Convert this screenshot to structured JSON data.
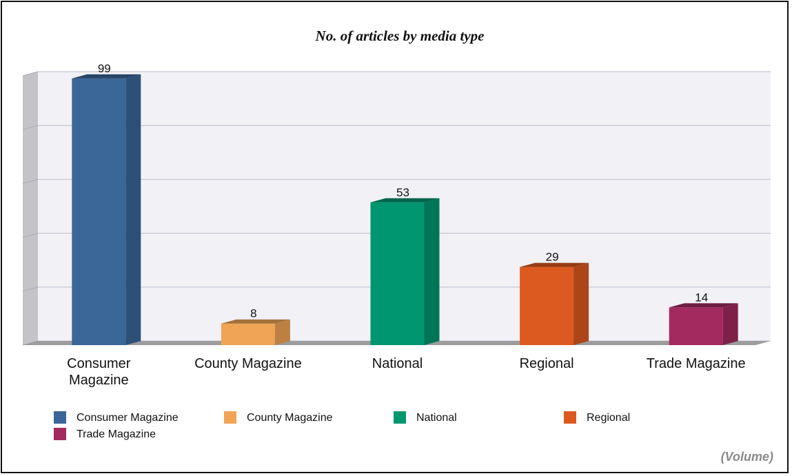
{
  "chart_data": {
    "type": "bar",
    "title": "No. of articles by media type",
    "categories": [
      "Consumer Magazine",
      "County Magazine",
      "National",
      "Regional",
      "Trade Magazine"
    ],
    "values": [
      99,
      8,
      53,
      29,
      14
    ],
    "colors": [
      "#3a6698",
      "#f0a455",
      "#009670",
      "#dc5a20",
      "#a22a5e"
    ],
    "ylim": [
      0,
      100
    ],
    "grid": true,
    "legend": {
      "position": "bottom",
      "entries": [
        "Consumer Magazine",
        "County Magazine",
        "National",
        "Regional",
        "Trade Magazine"
      ]
    },
    "note": "(Volume)"
  }
}
